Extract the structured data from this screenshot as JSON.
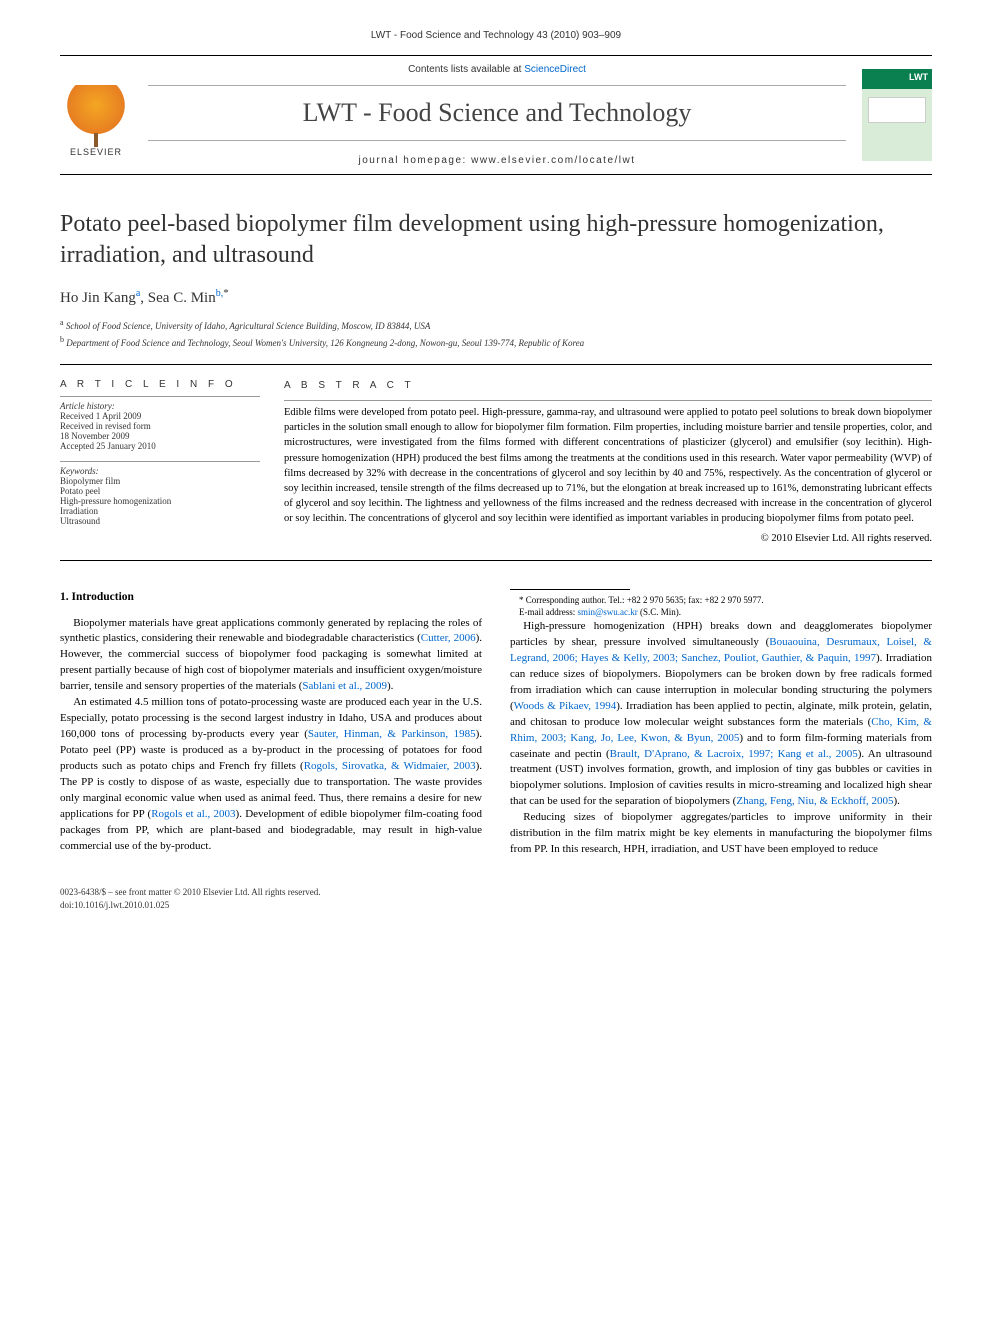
{
  "header": {
    "citation": "LWT - Food Science and Technology 43 (2010) 903–909",
    "contents_prefix": "Contents lists available at ",
    "contents_link": "ScienceDirect",
    "journal_name": "LWT - Food Science and Technology",
    "homepage_prefix": "journal homepage: ",
    "homepage_url": "www.elsevier.com/locate/lwt",
    "publisher_name": "ELSEVIER"
  },
  "article": {
    "title": "Potato peel-based biopolymer film development using high-pressure homogenization, irradiation, and ultrasound",
    "authors_html": "Ho Jin Kang<sup class='affil-mark'>a</sup>, Sea C. Min<sup class='affil-mark'>b,</sup><span class='corr'>*</span>",
    "affiliations": [
      {
        "mark": "a",
        "text": "School of Food Science, University of Idaho, Agricultural Science Building, Moscow, ID 83844, USA"
      },
      {
        "mark": "b",
        "text": "Department of Food Science and Technology, Seoul Women's University, 126 Kongneung 2-dong, Nowon-gu, Seoul 139-774, Republic of Korea"
      }
    ]
  },
  "info": {
    "heading": "A R T I C L E   I N F O",
    "history_label": "Article history:",
    "history": [
      "Received 1 April 2009",
      "Received in revised form",
      "18 November 2009",
      "Accepted 25 January 2010"
    ],
    "keywords_label": "Keywords:",
    "keywords": [
      "Biopolymer film",
      "Potato peel",
      "High-pressure homogenization",
      "Irradiation",
      "Ultrasound"
    ]
  },
  "abstract": {
    "heading": "A B S T R A C T",
    "text": "Edible films were developed from potato peel. High-pressure, gamma-ray, and ultrasound were applied to potato peel solutions to break down biopolymer particles in the solution small enough to allow for biopolymer film formation. Film properties, including moisture barrier and tensile properties, color, and microstructures, were investigated from the films formed with different concentrations of plasticizer (glycerol) and emulsifier (soy lecithin). High-pressure homogenization (HPH) produced the best films among the treatments at the conditions used in this research. Water vapor permeability (WVP) of films decreased by 32% with decrease in the concentrations of glycerol and soy lecithin by 40 and 75%, respectively. As the concentration of glycerol or soy lecithin increased, tensile strength of the films decreased up to 71%, but the elongation at break increased up to 161%, demonstrating lubricant effects of glycerol and soy lecithin. The lightness and yellowness of the films increased and the redness decreased with increase in the concentration of glycerol or soy lecithin. The concentrations of glycerol and soy lecithin were identified as important variables in producing biopolymer films from potato peel.",
    "copyright": "© 2010 Elsevier Ltd. All rights reserved."
  },
  "body": {
    "section_number": "1.",
    "section_title": "Introduction",
    "p1_a": "Biopolymer materials have great applications commonly generated by replacing the roles of synthetic plastics, considering their renewable and biodegradable characteristics (",
    "p1_ref1": "Cutter, 2006",
    "p1_b": "). However, the commercial success of biopolymer food packaging is somewhat limited at present partially because of high cost of biopolymer materials and insufficient oxygen/moisture barrier, tensile and sensory properties of the materials (",
    "p1_ref2": "Sablani et al., 2009",
    "p1_c": ").",
    "p2_a": "An estimated 4.5 million tons of potato-processing waste are produced each year in the U.S. Especially, potato processing is the second largest industry in Idaho, USA and produces about 160,000 tons of processing by-products every year (",
    "p2_ref1": "Sauter, Hinman, & Parkinson, 1985",
    "p2_b": "). Potato peel (PP) waste is produced as a by-product in the processing of potatoes for food products such as potato chips and French fry fillets (",
    "p2_ref2": "Rogols, Sirovatka, & Widmaier, 2003",
    "p2_c": "). The PP is costly to dispose of as waste, especially due to transportation. The waste provides only marginal economic value when used as animal feed. Thus, there remains a desire for new applications for PP (",
    "p2_ref3": "Rogols et al., 2003",
    "p2_d": "). Development of edible biopolymer film-coating food packages from PP, which are plant-based and biodegradable, may result in high-value commercial use of the by-product.",
    "p3_a": "High-pressure homogenization (HPH) breaks down and deagglomerates biopolymer particles by shear, pressure involved simultaneously (",
    "p3_ref1": "Bouaouina, Desrumaux, Loisel, & Legrand, 2006; Hayes & Kelly, 2003; Sanchez, Pouliot, Gauthier, & Paquin, 1997",
    "p3_b": "). Irradiation can reduce sizes of biopolymers. Biopolymers can be broken down by free radicals formed from irradiation which can cause interruption in molecular bonding structuring the polymers (",
    "p3_ref2": "Woods & Pikaev, 1994",
    "p3_c": "). Irradiation has been applied to pectin, alginate, milk protein, gelatin, and chitosan to produce low molecular weight substances form the materials (",
    "p3_ref3": "Cho, Kim, & Rhim, 2003; Kang, Jo, Lee, Kwon, & Byun, 2005",
    "p3_d": ") and to form film-forming materials from caseinate and pectin (",
    "p3_ref4": "Brault, D'Aprano, & Lacroix, 1997; Kang et al., 2005",
    "p3_e": "). An ultrasound treatment (UST) involves formation, growth, and implosion of tiny gas bubbles or cavities in biopolymer solutions. Implosion of cavities results in micro-streaming and localized high shear that can be used for the separation of biopolymers (",
    "p3_ref5": "Zhang, Feng, Niu, & Eckhoff, 2005",
    "p3_f": ").",
    "p4": "Reducing sizes of biopolymer aggregates/particles to improve uniformity in their distribution in the film matrix might be key elements in manufacturing the biopolymer films from PP. In this research, HPH, irradiation, and UST have been employed to reduce"
  },
  "footnote": {
    "corr_label": "* Corresponding author. Tel.: +82 2 970 5635; fax: +82 2 970 5977.",
    "email_label": "E-mail address: ",
    "email": "smin@swu.ac.kr",
    "email_suffix": " (S.C. Min)."
  },
  "footer": {
    "line1": "0023-6438/$ – see front matter © 2010 Elsevier Ltd. All rights reserved.",
    "line2": "doi:10.1016/j.lwt.2010.01.025"
  },
  "colors": {
    "link": "#0066cc",
    "cover_green": "#0a8050",
    "elsevier_orange": "#e67e22"
  }
}
